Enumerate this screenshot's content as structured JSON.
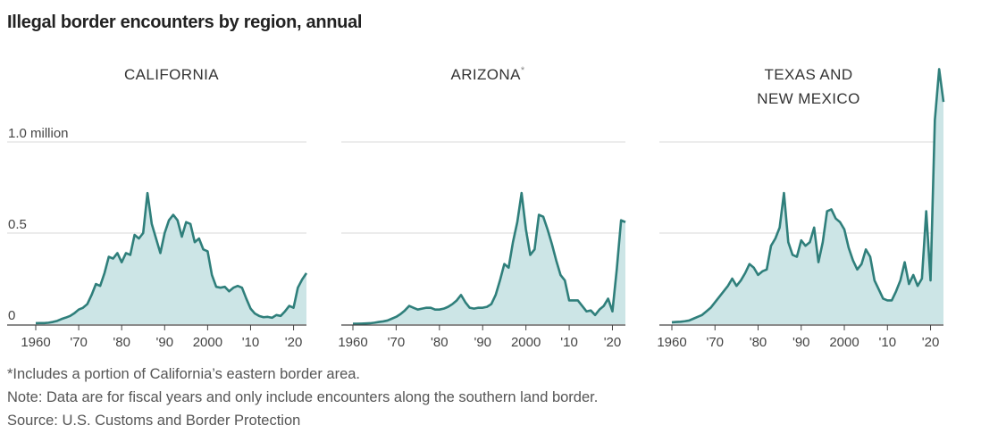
{
  "header": {
    "title": "Illegal border encounters by region, annual"
  },
  "colors": {
    "line": "#2f7f7b",
    "fill": "#cce5e6",
    "grid": "#d9d9d9",
    "axis": "#444444"
  },
  "chart_data": {
    "type": "area",
    "ylim": [
      0,
      1.2
    ],
    "y_ticks": [
      0,
      0.5,
      1.0
    ],
    "y_tick_labels": [
      "0",
      "0.5",
      "1.0 million"
    ],
    "x_ticks": [
      1960,
      1970,
      1980,
      1990,
      2000,
      2010,
      2020
    ],
    "x_tick_labels": [
      "1960",
      "'70",
      "'80",
      "'90",
      "2000",
      "'10",
      "'20"
    ],
    "panels": [
      {
        "title": "CALIFORNIA",
        "title_lines": [
          "CALIFORNIA"
        ],
        "footnote_mark": "",
        "x": [
          1960,
          1961,
          1962,
          1963,
          1964,
          1965,
          1966,
          1967,
          1968,
          1969,
          1970,
          1971,
          1972,
          1973,
          1974,
          1975,
          1976,
          1977,
          1978,
          1979,
          1980,
          1981,
          1982,
          1983,
          1984,
          1985,
          1986,
          1987,
          1988,
          1989,
          1990,
          1991,
          1992,
          1993,
          1994,
          1995,
          1996,
          1997,
          1998,
          1999,
          2000,
          2001,
          2002,
          2003,
          2004,
          2005,
          2006,
          2007,
          2008,
          2009,
          2010,
          2011,
          2012,
          2013,
          2014,
          2015,
          2016,
          2017,
          2018,
          2019,
          2020,
          2021,
          2022,
          2023
        ],
        "y": [
          0.005,
          0.006,
          0.006,
          0.008,
          0.012,
          0.018,
          0.028,
          0.036,
          0.045,
          0.06,
          0.08,
          0.09,
          0.11,
          0.16,
          0.22,
          0.21,
          0.28,
          0.37,
          0.36,
          0.39,
          0.34,
          0.39,
          0.38,
          0.49,
          0.47,
          0.5,
          0.72,
          0.55,
          0.47,
          0.39,
          0.5,
          0.57,
          0.6,
          0.57,
          0.48,
          0.56,
          0.55,
          0.45,
          0.47,
          0.41,
          0.4,
          0.27,
          0.205,
          0.2,
          0.205,
          0.18,
          0.2,
          0.21,
          0.2,
          0.14,
          0.085,
          0.058,
          0.045,
          0.038,
          0.04,
          0.035,
          0.05,
          0.045,
          0.07,
          0.1,
          0.09,
          0.2,
          0.245,
          0.28
        ]
      },
      {
        "title": "ARIZONA",
        "title_lines": [
          "ARIZONA"
        ],
        "footnote_mark": "*",
        "x": [
          1960,
          1961,
          1962,
          1963,
          1964,
          1965,
          1966,
          1967,
          1968,
          1969,
          1970,
          1971,
          1972,
          1973,
          1974,
          1975,
          1976,
          1977,
          1978,
          1979,
          1980,
          1981,
          1982,
          1983,
          1984,
          1985,
          1986,
          1987,
          1988,
          1989,
          1990,
          1991,
          1992,
          1993,
          1994,
          1995,
          1996,
          1997,
          1998,
          1999,
          2000,
          2001,
          2002,
          2003,
          2004,
          2005,
          2006,
          2007,
          2008,
          2009,
          2010,
          2011,
          2012,
          2013,
          2014,
          2015,
          2016,
          2017,
          2018,
          2019,
          2020,
          2021,
          2022,
          2023
        ],
        "y": [
          0.002,
          0.002,
          0.003,
          0.004,
          0.005,
          0.008,
          0.012,
          0.015,
          0.02,
          0.03,
          0.04,
          0.055,
          0.075,
          0.1,
          0.09,
          0.08,
          0.085,
          0.09,
          0.09,
          0.08,
          0.08,
          0.085,
          0.095,
          0.11,
          0.13,
          0.16,
          0.12,
          0.09,
          0.085,
          0.09,
          0.09,
          0.095,
          0.11,
          0.16,
          0.24,
          0.33,
          0.31,
          0.45,
          0.56,
          0.72,
          0.52,
          0.38,
          0.41,
          0.6,
          0.59,
          0.52,
          0.44,
          0.35,
          0.27,
          0.24,
          0.13,
          0.13,
          0.13,
          0.1,
          0.07,
          0.075,
          0.05,
          0.08,
          0.1,
          0.14,
          0.07,
          0.3,
          0.57,
          0.56
        ]
      },
      {
        "title": "TEXAS AND NEW MEXICO",
        "title_lines": [
          "TEXAS AND",
          "NEW MEXICO"
        ],
        "footnote_mark": "",
        "x": [
          1960,
          1961,
          1962,
          1963,
          1964,
          1965,
          1966,
          1967,
          1968,
          1969,
          1970,
          1971,
          1972,
          1973,
          1974,
          1975,
          1976,
          1977,
          1978,
          1979,
          1980,
          1981,
          1982,
          1983,
          1984,
          1985,
          1986,
          1987,
          1988,
          1989,
          1990,
          1991,
          1992,
          1993,
          1994,
          1995,
          1996,
          1997,
          1998,
          1999,
          2000,
          2001,
          2002,
          2003,
          2004,
          2005,
          2006,
          2007,
          2008,
          2009,
          2010,
          2011,
          2012,
          2013,
          2014,
          2015,
          2016,
          2017,
          2018,
          2019,
          2020,
          2021,
          2022,
          2023
        ],
        "y": [
          0.01,
          0.012,
          0.013,
          0.016,
          0.02,
          0.03,
          0.04,
          0.05,
          0.07,
          0.09,
          0.12,
          0.15,
          0.18,
          0.21,
          0.25,
          0.21,
          0.24,
          0.28,
          0.33,
          0.31,
          0.27,
          0.29,
          0.3,
          0.43,
          0.47,
          0.53,
          0.72,
          0.45,
          0.38,
          0.37,
          0.46,
          0.43,
          0.45,
          0.53,
          0.34,
          0.45,
          0.62,
          0.63,
          0.58,
          0.56,
          0.52,
          0.42,
          0.35,
          0.3,
          0.33,
          0.41,
          0.37,
          0.24,
          0.19,
          0.14,
          0.13,
          0.13,
          0.18,
          0.24,
          0.34,
          0.22,
          0.27,
          0.21,
          0.25,
          0.62,
          0.24,
          1.12,
          1.4,
          1.22
        ]
      }
    ]
  },
  "footnotes": {
    "asterisk": "*Includes a portion of California’s eastern border area.",
    "note": "Note: Data are for fiscal years and only include encounters along the southern land border.",
    "source": "Source: U.S. Customs and Border Protection"
  }
}
